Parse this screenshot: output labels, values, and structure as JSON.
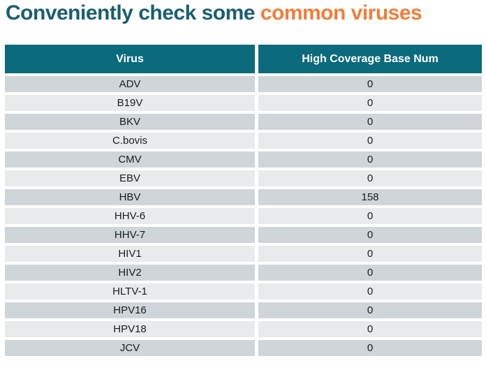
{
  "title": {
    "prefix": "Conveniently check some ",
    "highlight": "common viruses"
  },
  "colors": {
    "title_teal": "#1A5E72",
    "title_orange": "#F07E3A",
    "header_bg": "#0B6A7B",
    "header_text": "#FFFFFF",
    "row_dark": "#CFD5D8",
    "row_light": "#E8EBEC",
    "cell_text": "#1C1C1C"
  },
  "table": {
    "columns": [
      "Virus",
      "High Coverage Base Num"
    ],
    "rows": [
      {
        "virus": "ADV",
        "value": "0"
      },
      {
        "virus": "B19V",
        "value": "0"
      },
      {
        "virus": "BKV",
        "value": "0"
      },
      {
        "virus": "C.bovis",
        "value": "0"
      },
      {
        "virus": "CMV",
        "value": "0"
      },
      {
        "virus": "EBV",
        "value": "0"
      },
      {
        "virus": "HBV",
        "value": "158"
      },
      {
        "virus": "HHV-6",
        "value": "0"
      },
      {
        "virus": "HHV-7",
        "value": "0"
      },
      {
        "virus": "HIV1",
        "value": "0"
      },
      {
        "virus": "HIV2",
        "value": "0"
      },
      {
        "virus": "HLTV-1",
        "value": "0"
      },
      {
        "virus": "HPV16",
        "value": "0"
      },
      {
        "virus": "HPV18",
        "value": "0"
      },
      {
        "virus": "JCV",
        "value": "0"
      }
    ]
  }
}
